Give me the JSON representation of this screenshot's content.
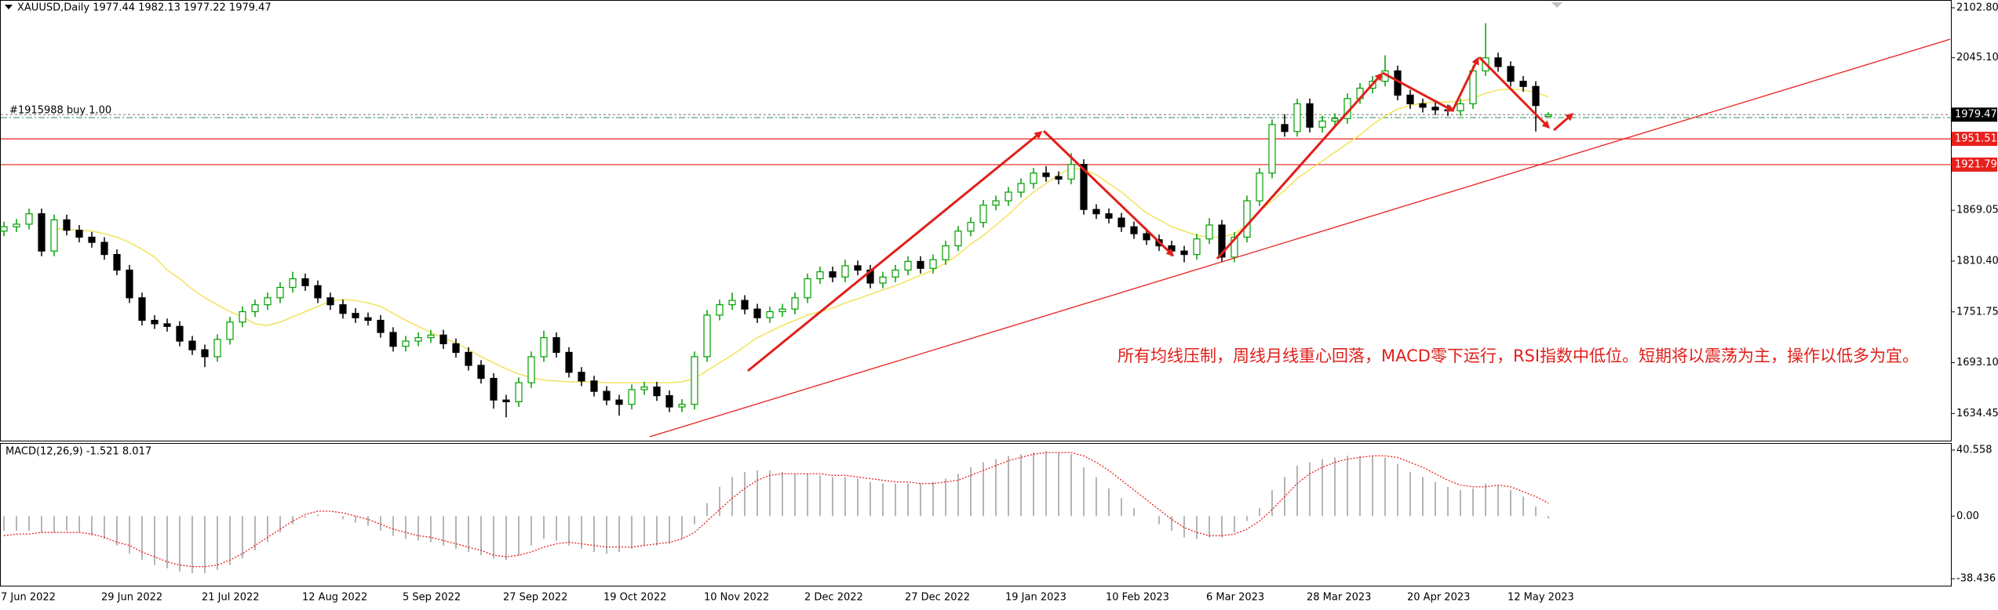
{
  "chart_data": [
    {
      "type": "candlestick",
      "title": "XAUUSD,Daily  1977.44 1982.13 1977.22 1979.47",
      "categories": [
        "7 Jun 2022",
        null,
        null,
        null,
        null,
        null,
        null,
        null,
        "29 Jun 2022",
        null,
        null,
        null,
        null,
        null,
        null,
        null,
        "21 Jul 2022",
        null,
        null,
        null,
        null,
        null,
        null,
        null,
        "12 Aug 2022",
        null,
        null,
        null,
        null,
        null,
        null,
        null,
        "5 Sep 2022",
        null,
        null,
        null,
        null,
        null,
        null,
        null,
        "27 Sep 2022",
        null,
        null,
        null,
        null,
        null,
        null,
        null,
        "19 Oct 2022",
        null,
        null,
        null,
        null,
        null,
        null,
        null,
        "10 Nov 2022",
        null,
        null,
        null,
        null,
        null,
        null,
        null,
        "2 Dec 2022",
        null,
        null,
        null,
        null,
        null,
        null,
        null,
        "27 Dec 2022",
        null,
        null,
        null,
        null,
        null,
        null,
        null,
        "19 Jan 2023",
        null,
        null,
        null,
        null,
        null,
        null,
        null,
        "10 Feb 2023",
        null,
        null,
        null,
        null,
        null,
        null,
        null,
        "6 Mar 2023",
        null,
        null,
        null,
        null,
        null,
        null,
        null,
        "28 Mar 2023",
        null,
        null,
        null,
        null,
        null,
        null,
        null,
        "20 Apr 2023",
        null,
        null,
        null,
        null,
        null,
        null,
        null,
        "12 May 2023",
        null,
        null,
        null
      ],
      "open": [
        1845,
        1850,
        1853,
        1865,
        1822,
        1858,
        1846,
        1838,
        1832,
        1818,
        1800,
        1768,
        1742,
        1738,
        1735,
        1718,
        1708,
        1700,
        1720,
        1740,
        1752,
        1760,
        1768,
        1780,
        1790,
        1782,
        1768,
        1760,
        1750,
        1745,
        1742,
        1728,
        1712,
        1718,
        1722,
        1725,
        1715,
        1705,
        1690,
        1675,
        1650,
        1648,
        1670,
        1700,
        1722,
        1705,
        1682,
        1672,
        1660,
        1650,
        1645,
        1662,
        1665,
        1655,
        1642,
        1645,
        1700,
        1748,
        1760,
        1765,
        1755,
        1745,
        1752,
        1755,
        1768,
        1790,
        1798,
        1792,
        1805,
        1800,
        1785,
        1792,
        1800,
        1810,
        1802,
        1812,
        1828,
        1845,
        1855,
        1875,
        1880,
        1890,
        1900,
        1912,
        1908,
        1905,
        1922,
        1870,
        1865,
        1860,
        1850,
        1842,
        1835,
        1828,
        1822,
        1818,
        1836,
        1852,
        1815,
        1838,
        1880,
        1912,
        1968,
        1960,
        1992,
        1965,
        1972,
        1975,
        1998,
        2010,
        2018,
        2030,
        2002,
        1992,
        1988,
        1985,
        1984,
        1992,
        2030,
        2045,
        2035,
        2018,
        2012,
        1977.44
      ],
      "high": [
        1856,
        1859,
        1871,
        1871,
        1864,
        1864,
        1852,
        1844,
        1838,
        1824,
        1806,
        1774,
        1748,
        1744,
        1741,
        1724,
        1714,
        1726,
        1746,
        1758,
        1766,
        1774,
        1786,
        1798,
        1796,
        1788,
        1774,
        1766,
        1756,
        1751,
        1748,
        1734,
        1724,
        1728,
        1731,
        1731,
        1721,
        1711,
        1696,
        1681,
        1656,
        1676,
        1706,
        1730,
        1728,
        1711,
        1688,
        1678,
        1666,
        1656,
        1668,
        1671,
        1671,
        1661,
        1651,
        1706,
        1754,
        1766,
        1774,
        1771,
        1761,
        1758,
        1761,
        1774,
        1796,
        1804,
        1804,
        1812,
        1811,
        1806,
        1798,
        1806,
        1816,
        1816,
        1818,
        1834,
        1851,
        1861,
        1881,
        1886,
        1896,
        1906,
        1918,
        1920,
        1914,
        1935,
        1928,
        1876,
        1871,
        1866,
        1856,
        1848,
        1841,
        1834,
        1828,
        1842,
        1860,
        1858,
        1844,
        1886,
        1918,
        1974,
        1980,
        1998,
        1998,
        1978,
        1981,
        2004,
        2016,
        2024,
        2048,
        2036,
        2008,
        1998,
        1994,
        1991,
        1998,
        2036,
        2085,
        2051,
        2041,
        2024,
        2018,
        1982.13
      ],
      "low": [
        1839,
        1844,
        1847,
        1816,
        1816,
        1840,
        1832,
        1826,
        1812,
        1794,
        1762,
        1736,
        1732,
        1729,
        1712,
        1702,
        1688,
        1694,
        1714,
        1734,
        1746,
        1754,
        1762,
        1774,
        1776,
        1762,
        1754,
        1744,
        1739,
        1736,
        1722,
        1706,
        1706,
        1712,
        1716,
        1709,
        1699,
        1684,
        1669,
        1640,
        1630,
        1642,
        1664,
        1694,
        1699,
        1676,
        1666,
        1654,
        1644,
        1632,
        1639,
        1656,
        1649,
        1636,
        1636,
        1639,
        1694,
        1742,
        1754,
        1749,
        1739,
        1739,
        1746,
        1749,
        1762,
        1784,
        1786,
        1786,
        1794,
        1779,
        1779,
        1786,
        1794,
        1796,
        1796,
        1806,
        1822,
        1839,
        1849,
        1869,
        1874,
        1884,
        1894,
        1902,
        1899,
        1899,
        1864,
        1859,
        1854,
        1844,
        1836,
        1829,
        1822,
        1816,
        1809,
        1812,
        1830,
        1809,
        1809,
        1832,
        1874,
        1906,
        1954,
        1954,
        1959,
        1959,
        1966,
        1969,
        1992,
        2004,
        2012,
        1996,
        1986,
        1982,
        1979,
        1978,
        1978,
        1986,
        2024,
        2029,
        2012,
        2006,
        1960,
        1977.22
      ],
      "close": [
        1850,
        1853,
        1865,
        1822,
        1858,
        1846,
        1838,
        1832,
        1818,
        1800,
        1768,
        1742,
        1738,
        1735,
        1718,
        1708,
        1700,
        1720,
        1740,
        1752,
        1760,
        1768,
        1780,
        1790,
        1782,
        1768,
        1760,
        1750,
        1745,
        1742,
        1728,
        1712,
        1718,
        1722,
        1725,
        1715,
        1705,
        1690,
        1675,
        1650,
        1648,
        1670,
        1700,
        1722,
        1705,
        1682,
        1672,
        1660,
        1650,
        1645,
        1662,
        1665,
        1655,
        1642,
        1645,
        1700,
        1748,
        1760,
        1765,
        1755,
        1745,
        1752,
        1755,
        1768,
        1790,
        1798,
        1792,
        1805,
        1800,
        1785,
        1792,
        1800,
        1810,
        1802,
        1812,
        1828,
        1845,
        1855,
        1875,
        1880,
        1890,
        1900,
        1912,
        1908,
        1905,
        1922,
        1870,
        1865,
        1860,
        1850,
        1842,
        1835,
        1828,
        1822,
        1818,
        1836,
        1852,
        1815,
        1838,
        1880,
        1912,
        1968,
        1960,
        1992,
        1965,
        1972,
        1975,
        1998,
        2010,
        2018,
        2030,
        2002,
        1992,
        1988,
        1985,
        1984,
        1992,
        2030,
        2045,
        2035,
        2018,
        2012,
        1990,
        1979.47
      ],
      "color_up": "#00a000",
      "color_down": "#000000",
      "overlay": {
        "color": "#f2e35c",
        "values": [
          null,
          null,
          null,
          null,
          1848,
          1847,
          1846,
          1845,
          1842,
          1838,
          1832,
          1824,
          1815,
          1800,
          1790,
          1778,
          1768,
          1760,
          1752,
          1746,
          1738,
          1736,
          1740,
          1746,
          1752,
          1758,
          1764,
          1766,
          1765,
          1762,
          1758,
          1750,
          1742,
          1735,
          1728,
          1722,
          1716,
          1708,
          1700,
          1693,
          1686,
          1680,
          1676,
          1673,
          1672,
          1671,
          1671,
          1671,
          1670,
          1670,
          1670,
          1670,
          1670,
          1670,
          1671,
          1675,
          1684,
          1693,
          1702,
          1712,
          1722,
          1729,
          1736,
          1742,
          1748,
          1752,
          1756,
          1762,
          1767,
          1772,
          1777,
          1782,
          1788,
          1794,
          1800,
          1808,
          1818,
          1830,
          1840,
          1852,
          1864,
          1878,
          1890,
          1900,
          1910,
          1918,
          1916,
          1910,
          1900,
          1890,
          1878,
          1866,
          1858,
          1850,
          1845,
          1840,
          1838,
          1838,
          1842,
          1852,
          1868,
          1880,
          1892,
          1906,
          1916,
          1926,
          1936,
          1946,
          1956,
          1968,
          1978,
          1986,
          1990,
          1993,
          1994,
          1994,
          1995,
          1998,
          2004,
          2008,
          2009,
          2008,
          2005,
          2000
        ]
      },
      "price_lines": [
        {
          "value": 1979.47,
          "color": "#000000"
        },
        {
          "value": 1951.51,
          "color": "#e8201c"
        },
        {
          "value": 1921.79,
          "color": "#e8201c"
        }
      ],
      "order": {
        "text": "#1915988 buy 1.00",
        "value": 1976,
        "color": "#2e8b57"
      },
      "annotation": "所有均线压制，周线月线重心回落，MACD零下运行，RSI指数中低位。短期将以震荡为主，操作以低多为宜。",
      "ylim": [
        1604,
        2110
      ],
      "yticks": [
        {
          "value": 2102.8,
          "label": "2102.80"
        },
        {
          "value": 2045.1,
          "label": "2045.10"
        },
        1869.05,
        {
          "value": 1810.4,
          "label": "1810.40"
        },
        1751.75,
        {
          "value": 1693.1,
          "label": "1693.10"
        },
        1634.45
      ],
      "grid": false
    },
    {
      "type": "macd",
      "title": "MACD(12,26,9) -1.521 8.017",
      "histogram": {
        "color": "#b5b5b5",
        "values": [
          -9,
          -9,
          -9,
          -10,
          -10,
          -9,
          -10,
          -12,
          -14,
          -18,
          -23,
          -27,
          -30,
          -32,
          -34,
          -35,
          -35,
          -33,
          -30,
          -26,
          -21,
          -16,
          -10,
          -5,
          -1,
          1,
          0,
          -2,
          -4,
          -6,
          -9,
          -12,
          -14,
          -15,
          -16,
          -18,
          -20,
          -22,
          -24,
          -26,
          -27,
          -24,
          -18,
          -14,
          -15,
          -18,
          -20,
          -22,
          -23,
          -22,
          -20,
          -18,
          -18,
          -17,
          -14,
          -5,
          8,
          18,
          24,
          27,
          28,
          28,
          27,
          26,
          26,
          25,
          24,
          24,
          23,
          21,
          20,
          20,
          20,
          20,
          21,
          23,
          26,
          30,
          33,
          35,
          37,
          38,
          39,
          40,
          39,
          38,
          30,
          24,
          17,
          11,
          5,
          0,
          -5,
          -9,
          -13,
          -14,
          -13,
          -13,
          -10,
          -3,
          5,
          16,
          24,
          31,
          33,
          35,
          36,
          37,
          37,
          37,
          36,
          32,
          27,
          24,
          21,
          18,
          16,
          17,
          20,
          19,
          16,
          12,
          6,
          -1.521
        ]
      },
      "signal": {
        "color": "#e8201c",
        "values": [
          -12,
          -11,
          -11,
          -10,
          -10,
          -10,
          -10,
          -11,
          -13,
          -16,
          -18,
          -22,
          -25,
          -28,
          -30,
          -31,
          -31,
          -30,
          -27,
          -23,
          -18,
          -13,
          -8,
          -3,
          1,
          3,
          3,
          2,
          0,
          -2,
          -5,
          -8,
          -10,
          -12,
          -13,
          -15,
          -17,
          -19,
          -21,
          -24,
          -25,
          -24,
          -22,
          -19,
          -17,
          -16,
          -17,
          -18,
          -19,
          -19,
          -19,
          -18,
          -17,
          -16,
          -14,
          -10,
          -3,
          4,
          11,
          17,
          22,
          25,
          26,
          26,
          26,
          26,
          25,
          25,
          24,
          23,
          22,
          21,
          21,
          20,
          20,
          21,
          22,
          25,
          28,
          31,
          34,
          36,
          38,
          39,
          39,
          39,
          37,
          33,
          28,
          22,
          16,
          10,
          4,
          -2,
          -7,
          -10,
          -12,
          -12,
          -11,
          -8,
          -3,
          4,
          12,
          20,
          26,
          30,
          33,
          35,
          36,
          37,
          37,
          36,
          33,
          30,
          26,
          22,
          19,
          18,
          18,
          19,
          18,
          15,
          12,
          8.017
        ]
      },
      "ylim": [
        -42.7,
        44.4
      ],
      "yticks": [
        40.558,
        {
          "value": 0,
          "label": "0.00"
        },
        -38.436
      ]
    }
  ]
}
